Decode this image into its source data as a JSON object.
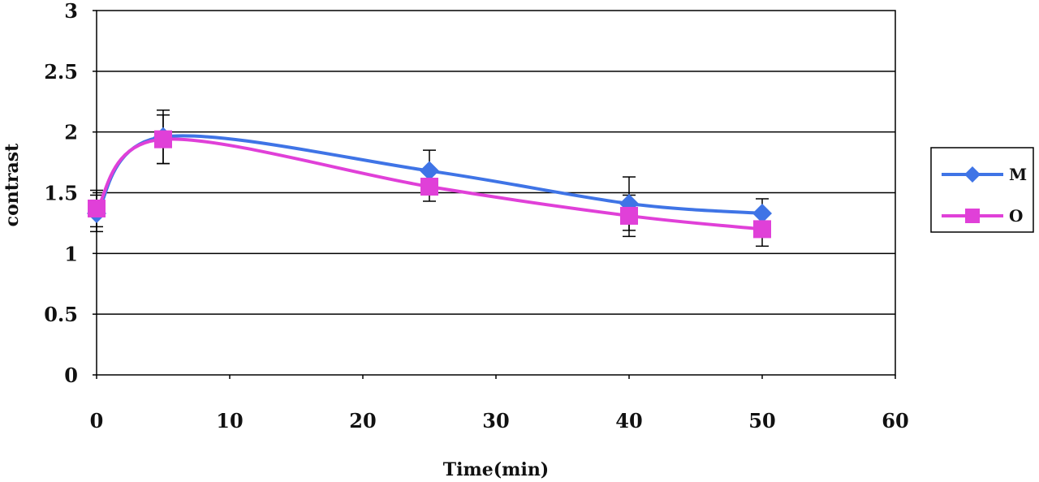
{
  "chart_data": {
    "type": "line",
    "title": "",
    "xlabel": "Time(min)",
    "ylabel": "contrast",
    "xlim": [
      0,
      60
    ],
    "ylim": [
      0,
      3
    ],
    "xticks": [
      0,
      10,
      20,
      30,
      40,
      50,
      60
    ],
    "yticks": [
      0,
      0.5,
      1,
      1.5,
      2,
      2.5,
      3
    ],
    "x_tick_labels": [
      "0",
      "10",
      "20",
      "30",
      "40",
      "50",
      "60"
    ],
    "y_tick_labels": [
      "0",
      "0.5",
      "1",
      "1.5",
      "2",
      "2.5",
      "3"
    ],
    "grid": "horizontal",
    "legend_position": "right",
    "series": [
      {
        "name": "M",
        "color": "#3f74e6",
        "marker": "diamond",
        "x": [
          0,
          5,
          25,
          40,
          50
        ],
        "y": [
          1.33,
          1.96,
          1.68,
          1.41,
          1.33
        ],
        "error": [
          0.15,
          0.22,
          0.17,
          0.22,
          0.12
        ]
      },
      {
        "name": "O",
        "color": "#e040d8",
        "marker": "square",
        "x": [
          0,
          5,
          25,
          40,
          50
        ],
        "y": [
          1.37,
          1.94,
          1.55,
          1.31,
          1.2
        ],
        "error": [
          0.15,
          0.2,
          0.12,
          0.17,
          0.14
        ]
      }
    ]
  }
}
